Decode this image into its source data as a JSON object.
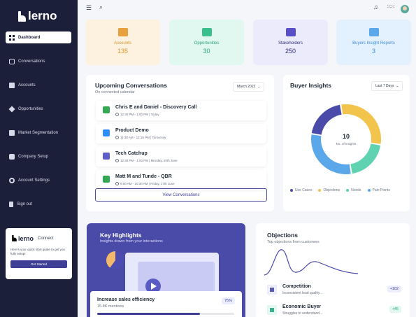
{
  "brand": {
    "name": "lerno"
  },
  "sidebar": {
    "items": [
      {
        "label": "Dashboard",
        "icon": "grid-icon",
        "active": true
      },
      {
        "label": "Conversations",
        "icon": "message-icon"
      },
      {
        "label": "Accounts",
        "icon": "briefcase-icon"
      },
      {
        "label": "Opportunities",
        "icon": "diamond-icon"
      },
      {
        "label": "Market Segmentation",
        "icon": "id-card-icon"
      },
      {
        "label": "Company Setup",
        "icon": "building-icon"
      },
      {
        "label": "Account Settings",
        "icon": "gear-icon"
      },
      {
        "label": "Sign out",
        "icon": "logout-icon"
      }
    ],
    "connect": {
      "brand": "lerno",
      "title": "Connect",
      "text": "Here's your quick start guide to get you fully setup!",
      "button": "Get Started"
    }
  },
  "stats": [
    {
      "label": "Accounts",
      "value": "135",
      "bg": "#fdf1df",
      "color": "#d9962f",
      "icon_color": "#e9a13f"
    },
    {
      "label": "Opportunities",
      "value": "30",
      "bg": "#e1f8f1",
      "color": "#2aa57f",
      "icon_color": "#3cbf8f"
    },
    {
      "label": "Stakeholders",
      "value": "250",
      "bg": "#ecebfb",
      "color": "#2f2f7a",
      "icon_color": "#5a4fc8"
    },
    {
      "label": "Buyers Insight Reports",
      "value": "3",
      "bg": "#e3f0fd",
      "color": "#3d8fd8",
      "icon_color": "#5aa8ea"
    }
  ],
  "upcoming": {
    "title": "Upcoming Conversations",
    "subtitle": "On connected calendar",
    "filter": "March 2022",
    "items": [
      {
        "title": "Chris E and Daniel - Discovery Call",
        "time": "12:30 PM - 1:00 PM | Today",
        "icon_color": "#34a853"
      },
      {
        "title": "Product Demo",
        "time": "11:30 AM - 12:15 PM | Tomorrow",
        "icon_color": "#2d8cff"
      },
      {
        "title": "Tech Catchup",
        "time": "12:30 PM - 1:00 PM | Monday, 20th June",
        "icon_color": "#5b5fc7"
      },
      {
        "title": "Matt M and Tunde - QBR",
        "time": "9:00 AM - 10:30 AM | Friday, 17th June",
        "icon_color": "#34a853"
      }
    ],
    "button": "View Conversations"
  },
  "insights": {
    "title": "Buyer Insights",
    "filter": "Last 7 Days",
    "center_value": "10",
    "center_label": "No. of Insights",
    "chart_data": {
      "type": "pie",
      "categories": [
        "Use Cases",
        "Objections",
        "Needs",
        "Pain Points"
      ],
      "values": [
        2,
        3,
        2,
        3
      ],
      "colors": [
        "#4a4aa8",
        "#f3c44b",
        "#5fd3b1",
        "#5aa8ea"
      ]
    }
  },
  "highlights": {
    "title": "Key Highlights",
    "subtitle": "Insights drawn from your interactions",
    "card": {
      "title": "Increase sales efficiency",
      "sub": "15.8K mentions",
      "percent": "75%",
      "progress": 0.75
    }
  },
  "objections": {
    "title": "Objections",
    "subtitle": "Top objections from customers",
    "items": [
      {
        "title": "Competition",
        "sub": "Inconsistent lead quality...",
        "badge": "+102",
        "badge_bg": "#eceeff",
        "badge_color": "#3f3f95",
        "icon_bg": "#eceeff",
        "icon_color": "#4a4aa8"
      },
      {
        "title": "Economic Buyer",
        "sub": "Struggles to understand...",
        "badge": "+45",
        "badge_bg": "#e1f8f1",
        "badge_color": "#2aa57f",
        "icon_bg": "#e1f8f1",
        "icon_color": "#2aa57f"
      }
    ]
  }
}
